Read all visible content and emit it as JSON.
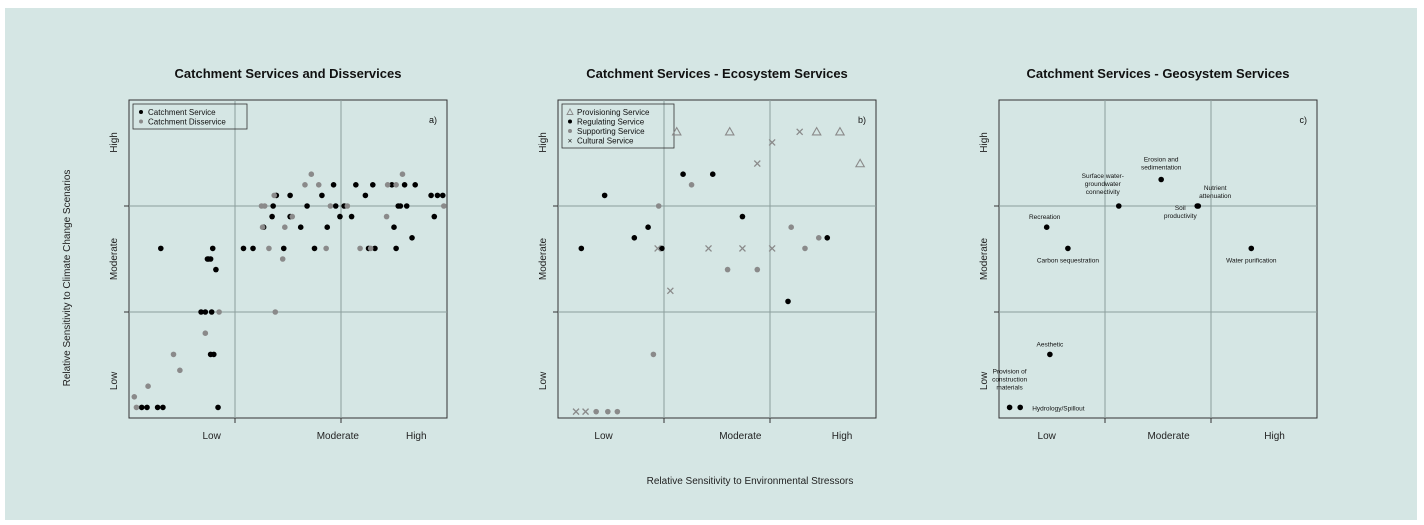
{
  "figure": {
    "xlabel": "Relative Sensitivity to Environmental Stressors",
    "ylabel": "Relative Sensitivity to Climate Change Scenarios"
  },
  "colors": {
    "background": "#d5e6e4",
    "black": "#000000",
    "gray": "#8a8a8a"
  },
  "chart_data": [
    {
      "type": "scatter",
      "title": "Catchment Services and Disservices",
      "panel_label": "a)",
      "xlim": [
        0,
        3
      ],
      "ylim": [
        0,
        3
      ],
      "x_ticks": [
        "Low",
        "Moderate",
        "High"
      ],
      "y_ticks": [
        "Low",
        "Moderate",
        "High"
      ],
      "grid_lines": [
        1,
        2
      ],
      "legend_position": "top-left",
      "legend": [
        {
          "label": "Catchment Service",
          "color": "#000000",
          "marker": "dot"
        },
        {
          "label": "Catchment Disservice",
          "color": "#8a8a8a",
          "marker": "dot"
        }
      ],
      "series": [
        {
          "name": "Catchment Service",
          "color": "#000000",
          "marker": "dot",
          "points": [
            [
              0.12,
              0.1
            ],
            [
              0.17,
              0.1
            ],
            [
              0.27,
              0.1
            ],
            [
              0.32,
              0.1
            ],
            [
              0.84,
              0.1
            ],
            [
              0.3,
              1.6
            ],
            [
              0.77,
              0.6
            ],
            [
              0.8,
              0.6
            ],
            [
              0.78,
              1.0
            ],
            [
              0.72,
              1.0
            ],
            [
              0.68,
              1.0
            ],
            [
              0.74,
              1.5
            ],
            [
              0.77,
              1.5
            ],
            [
              0.75,
              1.5
            ],
            [
              0.79,
              1.6
            ],
            [
              0.82,
              1.4
            ],
            [
              1.08,
              1.6
            ],
            [
              1.17,
              1.6
            ],
            [
              1.27,
              1.8
            ],
            [
              1.35,
              1.9
            ],
            [
              1.36,
              2.0
            ],
            [
              1.39,
              2.1
            ],
            [
              1.46,
              1.6
            ],
            [
              1.52,
              2.1
            ],
            [
              1.52,
              1.9
            ],
            [
              1.62,
              1.8
            ],
            [
              1.68,
              2.0
            ],
            [
              1.75,
              1.6
            ],
            [
              1.82,
              2.1
            ],
            [
              1.87,
              1.8
            ],
            [
              1.93,
              2.2
            ],
            [
              1.95,
              2.0
            ],
            [
              1.99,
              1.9
            ],
            [
              2.03,
              2.0
            ],
            [
              2.14,
              2.2
            ],
            [
              2.1,
              1.9
            ],
            [
              2.26,
              1.6
            ],
            [
              2.32,
              1.6
            ],
            [
              2.52,
              1.6
            ],
            [
              2.62,
              2.0
            ],
            [
              2.3,
              2.2
            ],
            [
              2.23,
              2.1
            ],
            [
              2.48,
              2.2
            ],
            [
              2.67,
              1.7
            ],
            [
              2.7,
              2.2
            ],
            [
              2.85,
              2.1
            ],
            [
              2.96,
              2.1
            ],
            [
              2.91,
              2.1
            ],
            [
              2.5,
              1.8
            ],
            [
              2.56,
              2.0
            ],
            [
              2.54,
              2.0
            ],
            [
              2.6,
              2.2
            ],
            [
              2.88,
              1.9
            ]
          ]
        },
        {
          "name": "Catchment Disservice",
          "color": "#8a8a8a",
          "marker": "dot",
          "points": [
            [
              0.05,
              0.2
            ],
            [
              0.07,
              0.1
            ],
            [
              0.18,
              0.3
            ],
            [
              0.48,
              0.45
            ],
            [
              0.42,
              0.6
            ],
            [
              0.72,
              0.8
            ],
            [
              0.85,
              1.0
            ],
            [
              1.25,
              2.0
            ],
            [
              1.37,
              2.1
            ],
            [
              1.45,
              1.5
            ],
            [
              1.38,
              1.0
            ],
            [
              1.28,
              2.0
            ],
            [
              1.47,
              1.8
            ],
            [
              1.54,
              1.9
            ],
            [
              1.66,
              2.2
            ],
            [
              1.72,
              2.3
            ],
            [
              1.86,
              1.6
            ],
            [
              1.9,
              2.0
            ],
            [
              1.79,
              2.2
            ],
            [
              2.06,
              2.0
            ],
            [
              2.18,
              1.6
            ],
            [
              2.28,
              1.6
            ],
            [
              2.43,
              1.9
            ],
            [
              2.52,
              2.2
            ],
            [
              2.58,
              2.3
            ],
            [
              2.44,
              2.2
            ],
            [
              2.97,
              2.0
            ],
            [
              1.32,
              1.6
            ],
            [
              1.26,
              1.8
            ]
          ]
        }
      ]
    },
    {
      "type": "scatter",
      "title": "Catchment Services - Ecosystem Services",
      "panel_label": "b)",
      "xlim": [
        0,
        3
      ],
      "ylim": [
        0,
        3
      ],
      "x_ticks": [
        "Low",
        "Moderate",
        "High"
      ],
      "y_ticks": [
        "Low",
        "Moderate",
        "High"
      ],
      "grid_lines": [
        1,
        2
      ],
      "legend_position": "top-left",
      "legend": [
        {
          "label": "Provisioning Service",
          "color": "#8a8a8a",
          "marker": "triangle"
        },
        {
          "label": "Regulating Service",
          "color": "#000000",
          "marker": "dot"
        },
        {
          "label": "Supporting Service",
          "color": "#8a8a8a",
          "marker": "dot"
        },
        {
          "label": "Cultural Service",
          "color": "#8a8a8a",
          "marker": "x"
        }
      ],
      "series": [
        {
          "name": "Provisioning Service",
          "color": "#8a8a8a",
          "marker": "triangle",
          "points": [
            [
              1.12,
              2.7
            ],
            [
              1.62,
              2.7
            ],
            [
              2.85,
              2.4
            ],
            [
              2.44,
              2.7
            ],
            [
              2.66,
              2.7
            ]
          ]
        },
        {
          "name": "Regulating Service",
          "color": "#000000",
          "marker": "dot",
          "points": [
            [
              0.22,
              1.6
            ],
            [
              0.44,
              2.1
            ],
            [
              0.72,
              1.7
            ],
            [
              0.85,
              1.8
            ],
            [
              0.98,
              1.6
            ],
            [
              1.18,
              2.3
            ],
            [
              1.46,
              2.3
            ],
            [
              1.74,
              1.9
            ],
            [
              2.54,
              1.7
            ],
            [
              2.17,
              1.1
            ]
          ]
        },
        {
          "name": "Supporting Service",
          "color": "#8a8a8a",
          "marker": "dot",
          "points": [
            [
              0.36,
              0.06
            ],
            [
              0.47,
              0.06
            ],
            [
              0.56,
              0.06
            ],
            [
              0.9,
              0.6
            ],
            [
              0.95,
              2.0
            ],
            [
              1.26,
              2.2
            ],
            [
              1.6,
              1.4
            ],
            [
              1.88,
              1.4
            ],
            [
              2.33,
              1.6
            ],
            [
              2.46,
              1.7
            ],
            [
              2.2,
              1.8
            ]
          ]
        },
        {
          "name": "Cultural Service",
          "color": "#8a8a8a",
          "marker": "x",
          "points": [
            [
              0.17,
              0.06
            ],
            [
              0.26,
              0.06
            ],
            [
              0.94,
              1.6
            ],
            [
              1.06,
              1.2
            ],
            [
              1.42,
              1.6
            ],
            [
              1.74,
              1.6
            ],
            [
              2.02,
              1.6
            ],
            [
              1.88,
              2.4
            ],
            [
              2.02,
              2.6
            ],
            [
              2.28,
              2.7
            ]
          ]
        }
      ]
    },
    {
      "type": "scatter",
      "title": "Catchment Services - Geosystem Services",
      "panel_label": "c)",
      "xlim": [
        0,
        3
      ],
      "ylim": [
        0,
        3
      ],
      "x_ticks": [
        "Low",
        "Moderate",
        "High"
      ],
      "y_ticks": [
        "Low",
        "Moderate",
        "High"
      ],
      "grid_lines": [
        1,
        2
      ],
      "series": [
        {
          "name": "",
          "color": "#000000",
          "marker": "dot",
          "points": [
            {
              "x": 0.1,
              "y": 0.1,
              "label": "Provision of construction materials"
            },
            {
              "x": 0.2,
              "y": 0.1,
              "label": "Hydrology/Spillout"
            },
            {
              "x": 0.48,
              "y": 0.6,
              "label": "Aesthetic"
            },
            {
              "x": 0.45,
              "y": 1.8,
              "label": "Recreation"
            },
            {
              "x": 0.65,
              "y": 1.6,
              "label": "Carbon sequestration"
            },
            {
              "x": 1.13,
              "y": 2.0,
              "label": "Surface water-groundwater connectivity"
            },
            {
              "x": 1.53,
              "y": 2.25,
              "label": "Erosion and sedimentation"
            },
            {
              "x": 1.88,
              "y": 2.0,
              "label": "Soil productivity"
            },
            {
              "x": 1.87,
              "y": 2.0,
              "label": "Nutrient attenuation"
            },
            {
              "x": 2.38,
              "y": 1.6,
              "label": "Water purification"
            }
          ]
        }
      ]
    }
  ]
}
